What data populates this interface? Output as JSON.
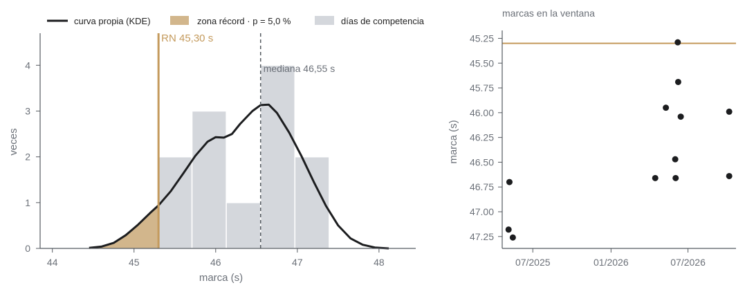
{
  "colors": {
    "kde": "#1c1d1f",
    "record": "#c49a5c",
    "record_fill": "#d2b68c",
    "hist": "#d4d7dc",
    "axis": "#555a60",
    "text": "#6b7078",
    "scatter": "#1c1d1f"
  },
  "legend": {
    "kde_label": "curva propia (KDE)",
    "zone_label": "zona récord · p = 5,0 %",
    "hist_label": "días de competencia"
  },
  "chart_data": [
    {
      "type": "histogram",
      "xlabel": "marca (s)",
      "ylabel": "veces",
      "xlim": [
        43.85,
        48.45
      ],
      "ylim": [
        0,
        4.7
      ],
      "xticks": [
        44,
        45,
        46,
        47,
        48
      ],
      "yticks": [
        0,
        1,
        2,
        3,
        4
      ],
      "bins": [
        {
          "x0": 45.3,
          "x1": 45.71,
          "count": 2
        },
        {
          "x0": 45.71,
          "x1": 46.13,
          "count": 3
        },
        {
          "x0": 46.13,
          "x1": 46.55,
          "count": 1
        },
        {
          "x0": 46.55,
          "x1": 46.97,
          "count": 4
        },
        {
          "x0": 46.97,
          "x1": 47.39,
          "count": 2
        }
      ],
      "kde": {
        "x": [
          44.45,
          44.6,
          44.75,
          44.9,
          45.05,
          45.2,
          45.3,
          45.45,
          45.6,
          45.75,
          45.9,
          46.0,
          46.1,
          46.2,
          46.3,
          46.45,
          46.55,
          46.65,
          46.75,
          46.9,
          47.05,
          47.2,
          47.35,
          47.5,
          47.65,
          47.8,
          47.95,
          48.12
        ],
        "y": [
          0.01,
          0.04,
          0.12,
          0.29,
          0.52,
          0.78,
          0.94,
          1.25,
          1.63,
          2.02,
          2.33,
          2.43,
          2.42,
          2.5,
          2.72,
          3.0,
          3.13,
          3.14,
          2.96,
          2.53,
          2.02,
          1.46,
          0.93,
          0.5,
          0.22,
          0.08,
          0.02,
          0.0
        ]
      },
      "record_line": {
        "x": 45.3,
        "label": "RN 45,30 s"
      },
      "median_line": {
        "x": 46.55,
        "label": "mediana 46,55 s"
      }
    },
    {
      "type": "scatter",
      "title": "marcas en la ventana",
      "ylabel": "marca (s)",
      "xlim": [
        "2025-04-20",
        "2026-10-22"
      ],
      "ylim": [
        47.37,
        45.17
      ],
      "y_inverted": true,
      "xticks": [
        {
          "date": "2025-07-01",
          "label": "07/2025"
        },
        {
          "date": "2026-01-01",
          "label": "01/2026"
        },
        {
          "date": "2026-07-01",
          "label": "07/2026"
        }
      ],
      "yticks": [
        45.25,
        45.5,
        45.75,
        46.0,
        46.25,
        46.5,
        46.75,
        47.0,
        47.25
      ],
      "ytick_labels": [
        "45.25",
        "45.50",
        "45.75",
        "46.00",
        "46.25",
        "46.50",
        "46.75",
        "47.00",
        "47.25"
      ],
      "record_line": {
        "y": 45.3
      },
      "points": [
        {
          "date": "2025-05-05",
          "y": 47.18
        },
        {
          "date": "2025-05-07",
          "y": 46.7
        },
        {
          "date": "2025-05-15",
          "y": 47.26
        },
        {
          "date": "2026-04-15",
          "y": 46.66
        },
        {
          "date": "2026-05-10",
          "y": 45.95
        },
        {
          "date": "2026-06-01",
          "y": 46.47
        },
        {
          "date": "2026-06-02",
          "y": 46.66
        },
        {
          "date": "2026-06-07",
          "y": 45.29
        },
        {
          "date": "2026-06-08",
          "y": 45.69
        },
        {
          "date": "2026-06-14",
          "y": 46.04
        },
        {
          "date": "2026-10-06",
          "y": 45.99
        },
        {
          "date": "2026-10-06",
          "y": 46.64
        }
      ]
    }
  ]
}
